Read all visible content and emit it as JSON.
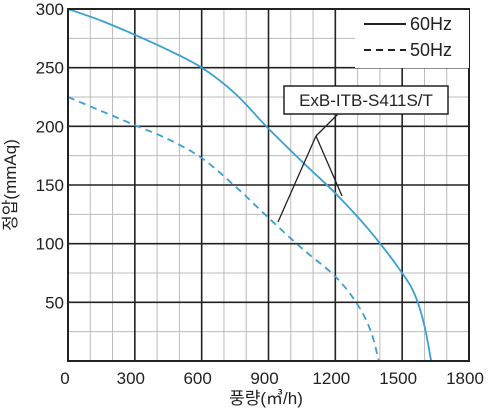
{
  "chart_data": {
    "type": "line",
    "title": "",
    "xlabel": "풍량(㎥/h)",
    "ylabel": "정압(mmAq)",
    "xlim": [
      0,
      1800
    ],
    "ylim": [
      0,
      300
    ],
    "xticks": [
      300,
      600,
      900,
      1200,
      1500,
      1800
    ],
    "xtick_labels": [
      "300",
      "600",
      "900",
      "1200",
      "1500",
      "1800"
    ],
    "yticks": [
      0,
      50,
      100,
      150,
      200,
      250,
      300
    ],
    "ytick_labels": [
      "0",
      "50",
      "100",
      "150",
      "200",
      "250",
      "300"
    ],
    "grid": true,
    "minor_grid_step": [
      100,
      25
    ],
    "legend_position": "top-right",
    "line_color": "#3aa0d0",
    "series": [
      {
        "name": "60Hz",
        "style": "solid",
        "x": [
          0,
          150,
          300,
          450,
          600,
          750,
          900,
          1050,
          1200,
          1350,
          1500,
          1560,
          1600,
          1630
        ],
        "y": [
          300,
          290,
          278,
          265,
          250,
          228,
          198,
          170,
          143,
          112,
          75,
          55,
          30,
          0
        ]
      },
      {
        "name": "50Hz",
        "style": "dashed",
        "x": [
          0,
          150,
          300,
          450,
          600,
          750,
          900,
          1050,
          1200,
          1300,
          1360,
          1395
        ],
        "y": [
          225,
          213,
          201,
          189,
          173,
          149,
          122,
          96,
          72,
          48,
          25,
          0
        ]
      }
    ],
    "annotations": [
      {
        "text": "ExB-ITB-S411S/T"
      }
    ]
  }
}
